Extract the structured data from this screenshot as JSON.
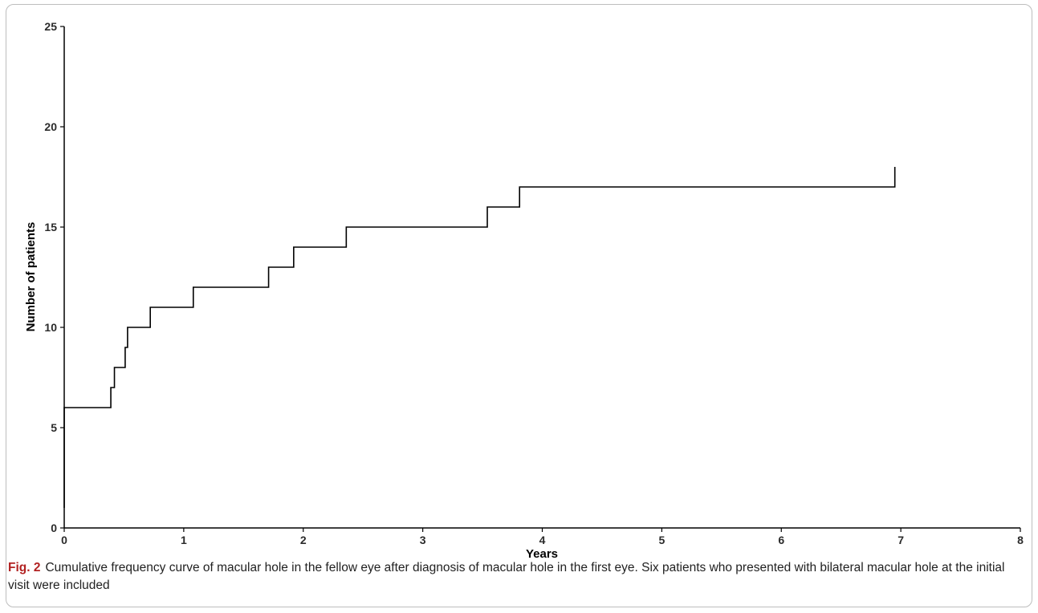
{
  "chart_data": {
    "type": "line",
    "step": true,
    "xlabel": "Years",
    "ylabel": "Number of patients",
    "xlim": [
      0,
      8
    ],
    "ylim": [
      0,
      25
    ],
    "xticks": [
      "0",
      "1",
      "2",
      "3",
      "4",
      "5",
      "6",
      "7",
      "8"
    ],
    "yticks": [
      "0",
      "5",
      "10",
      "15",
      "20",
      "25"
    ],
    "grid": false,
    "legend": "none",
    "line_color": "#000000",
    "series": [
      {
        "x": [
          0,
          0,
          0.39,
          0.39,
          0.42,
          0.42,
          0.51,
          0.51,
          0.53,
          0.53,
          0.72,
          0.72,
          1.08,
          1.08,
          1.71,
          1.71,
          1.92,
          1.92,
          2.36,
          2.36,
          3.54,
          3.54,
          3.81,
          3.81,
          6.95,
          6.95
        ],
        "y": [
          1,
          6,
          6,
          7,
          7,
          8,
          8,
          9,
          9,
          10,
          10,
          11,
          11,
          12,
          12,
          13,
          13,
          14,
          14,
          15,
          15,
          16,
          16,
          17,
          17,
          18
        ]
      }
    ]
  },
  "caption": {
    "figure_label": "Fig. 2",
    "text": "Cumulative frequency curve of macular hole in the fellow eye after diagnosis of macular hole in the first eye. Six patients who presented with bilateral macular hole at the initial visit were included"
  }
}
